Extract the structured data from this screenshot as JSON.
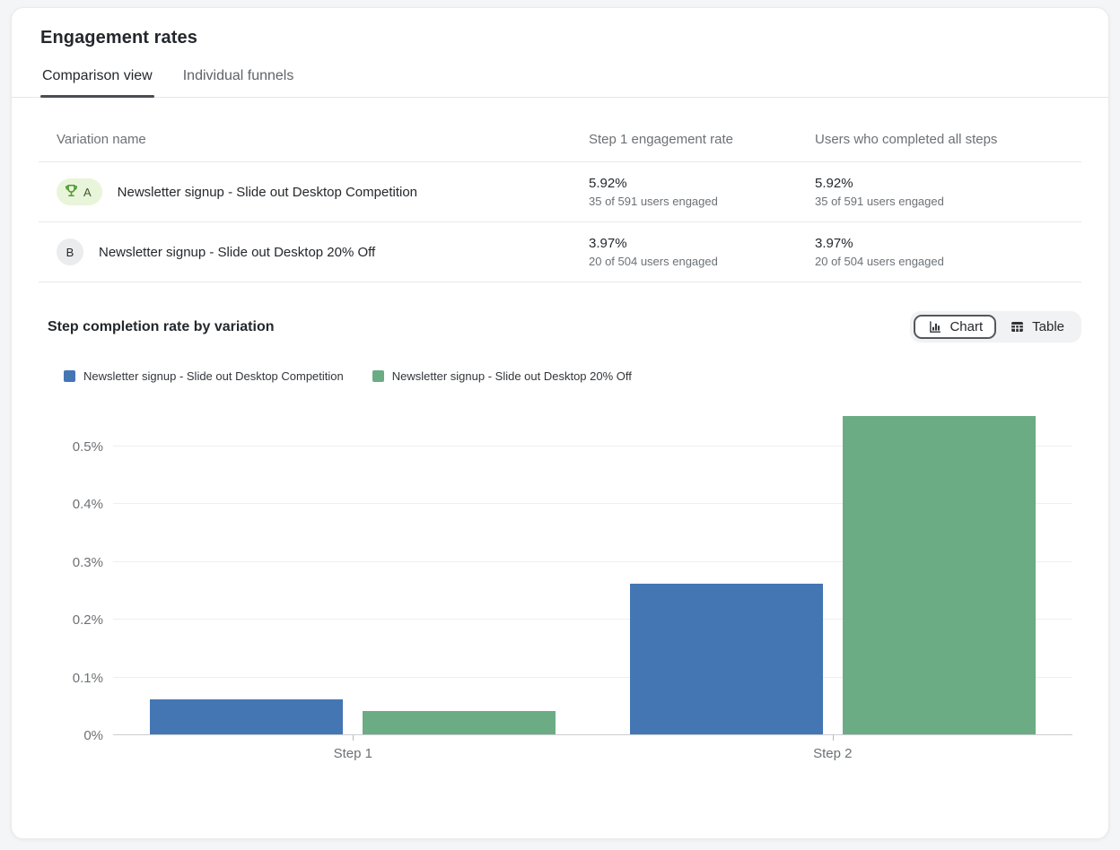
{
  "card": {
    "title": "Engagement rates",
    "tabs": [
      {
        "label": "Comparison view",
        "active": true
      },
      {
        "label": "Individual funnels",
        "active": false
      }
    ],
    "table": {
      "columns": [
        "Variation name",
        "Step 1 engagement rate",
        "Users who completed all steps"
      ],
      "rows": [
        {
          "badge": "A",
          "winner": true,
          "name": "Newsletter signup - Slide out Desktop Competition",
          "step1_rate": "5.92%",
          "step1_sub": "35 of 591 users engaged",
          "completed_rate": "5.92%",
          "completed_sub": "35 of 591 users engaged"
        },
        {
          "badge": "B",
          "winner": false,
          "name": "Newsletter signup - Slide out Desktop 20% Off",
          "step1_rate": "3.97%",
          "step1_sub": "20 of 504 users engaged",
          "completed_rate": "3.97%",
          "completed_sub": "20 of 504 users engaged"
        }
      ]
    },
    "chart_section": {
      "toggle": {
        "chart_label": "Chart",
        "table_label": "Table",
        "selected": "Chart"
      }
    }
  },
  "colors": {
    "series_blue": "#4476b4",
    "series_green": "#6bac85",
    "winner_badge_bg": "#e9f5da",
    "winner_trophy": "#509a33",
    "tab_underline": "#4a4e52"
  },
  "chart_data": {
    "type": "bar",
    "title": "Step completion rate by variation",
    "categories": [
      "Step 1",
      "Step 2"
    ],
    "series": [
      {
        "name": "Newsletter signup - Slide out Desktop Competition",
        "color": "#4476b4",
        "values": [
          0.06,
          0.26
        ]
      },
      {
        "name": "Newsletter signup - Slide out Desktop 20% Off",
        "color": "#6bac85",
        "values": [
          0.04,
          0.55
        ]
      }
    ],
    "unit": "%",
    "xlabel": "",
    "ylabel": "",
    "ylim": [
      0,
      0.574
    ],
    "y_ticks": [
      "0%",
      "0.1%",
      "0.2%",
      "0.3%",
      "0.4%",
      "0.5%"
    ],
    "y_tick_values": [
      0,
      0.1,
      0.2,
      0.3,
      0.4,
      0.5
    ],
    "grid": true,
    "legend_position": "top-left"
  }
}
